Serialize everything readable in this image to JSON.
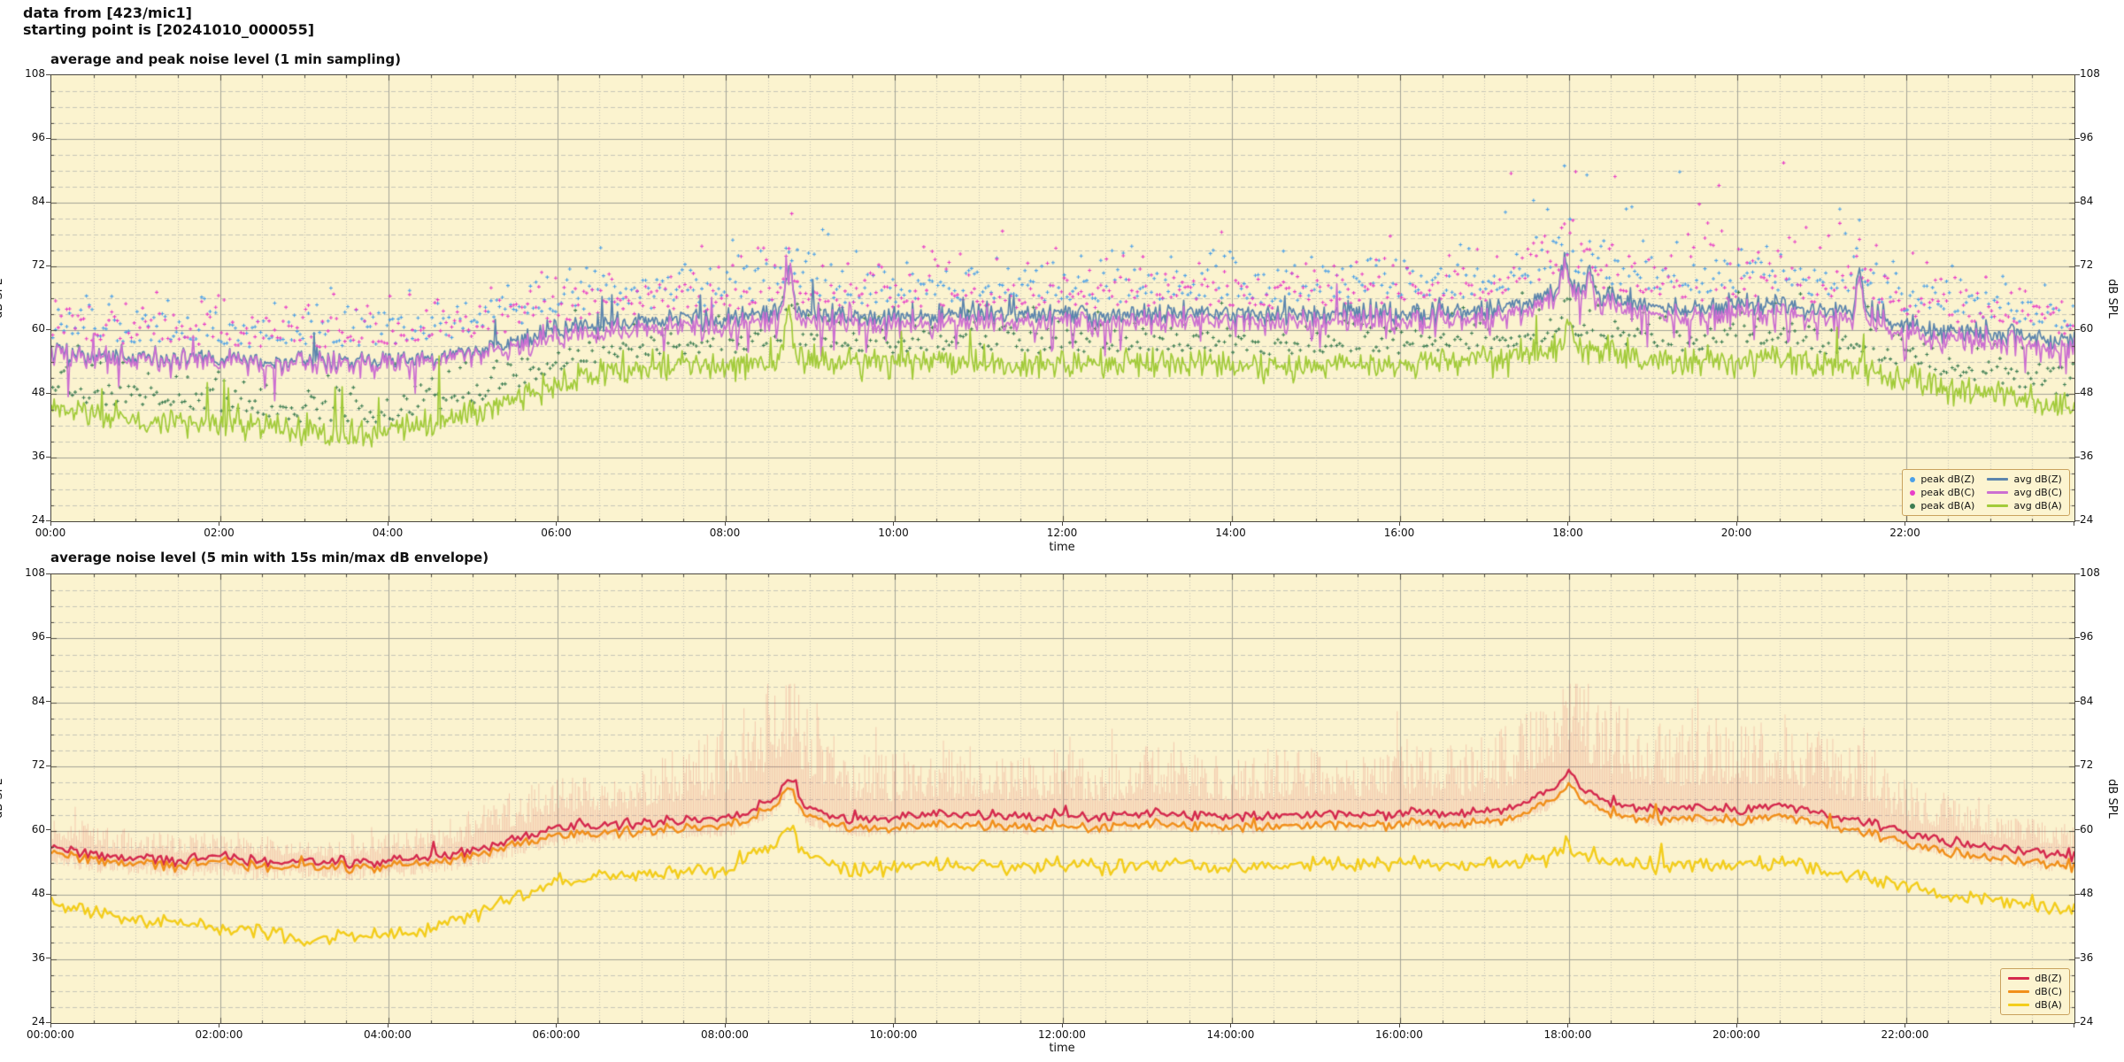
{
  "header": {
    "line1": "data from [423/mic1]",
    "line2": "starting point is [20241010_000055]"
  },
  "style": {
    "plot_bg": "#fbf3cf",
    "grid_major": "#a3a396",
    "grid_minor": "#c6c6b8",
    "frame": "#4a473f",
    "text": "#111111"
  },
  "chart_data": [
    {
      "type": "line+scatter",
      "title": "average and peak noise level (1 min sampling)",
      "xlabel": "time",
      "ylabel": "dB SPL",
      "xlim_hours": [
        0,
        24
      ],
      "ylim": [
        24,
        108
      ],
      "x_major_step_hours": 2,
      "x_minor_step_hours": 0.5,
      "y_major_step": 12,
      "y_minor_step": 3,
      "grid": true,
      "x_tick_labels": [
        "00:00",
        "02:00",
        "04:00",
        "06:00",
        "08:00",
        "10:00",
        "12:00",
        "14:00",
        "16:00",
        "18:00",
        "20:00",
        "22:00"
      ],
      "y_tick_labels": [
        "24",
        "36",
        "48",
        "60",
        "72",
        "84",
        "96",
        "108"
      ],
      "legend": {
        "position": "bottom-right",
        "entries": [
          {
            "label": "peak dB(Z)",
            "marker": "dot",
            "color": "#4ba0e8"
          },
          {
            "label": "peak dB(C)",
            "marker": "dot",
            "color": "#e83fc8"
          },
          {
            "label": "peak dB(A)",
            "marker": "dot",
            "color": "#3c7d52"
          },
          {
            "label": "avg dB(Z)",
            "marker": "line",
            "color": "#5c85ad"
          },
          {
            "label": "avg dB(C)",
            "marker": "line",
            "color": "#cc6fd1"
          },
          {
            "label": "avg dB(A)",
            "marker": "line",
            "color": "#a2cb3a"
          }
        ]
      },
      "series": [
        {
          "name": "avg dB(Z)",
          "type": "line",
          "color": "#5c85ad",
          "width": 1.7,
          "sample_step_min": 1,
          "anchor_step_hours": 0.5,
          "noise_db": 2.0,
          "noise_seed": "tZC",
          "spike": {
            "p": 0.012,
            "max": 6
          },
          "events": [
            {
              "t": 8.75,
              "a": 8,
              "w": 0.07
            },
            {
              "t": 17.95,
              "a": 6,
              "w": 0.05
            },
            {
              "t": 18.25,
              "a": 5,
              "w": 0.05
            },
            {
              "t": 21.45,
              "a": 8,
              "w": 0.04
            }
          ],
          "anchors": [
            56,
            55,
            55,
            54.5,
            55,
            54,
            54.5,
            54,
            54.5,
            55,
            56,
            58,
            60,
            61,
            61.5,
            62,
            62,
            63,
            63.5,
            62.5,
            62.5,
            63,
            63,
            62.5,
            63,
            62.5,
            63,
            63.5,
            63,
            62.5,
            63,
            63.5,
            63,
            63.5,
            63.5,
            65,
            68,
            66,
            64.5,
            64,
            64.5,
            65,
            63.5,
            64,
            61,
            60,
            59.5,
            58.5,
            57.5
          ]
        },
        {
          "name": "avg dB(C)",
          "type": "line",
          "color": "#cc6fd1",
          "width": 1.7,
          "sample_step_min": 1,
          "anchor_step_hours": 0.5,
          "noise_db": 2.3,
          "noise_seed": "tZC",
          "spike": {
            "p": 0.012,
            "max": 6
          },
          "dip": {
            "p": 0.05,
            "min": 2,
            "max": 6
          },
          "events": [
            {
              "t": 8.75,
              "a": 10,
              "w": 0.07
            },
            {
              "t": 17.95,
              "a": 6,
              "w": 0.05
            },
            {
              "t": 18.25,
              "a": 5,
              "w": 0.05
            },
            {
              "t": 21.45,
              "a": 8,
              "w": 0.04
            }
          ],
          "anchors": [
            55.5,
            54.5,
            54.5,
            54,
            54.5,
            53.5,
            54,
            53.5,
            54,
            54.5,
            55.5,
            57,
            58.5,
            59.5,
            60,
            60.5,
            60.5,
            61.5,
            62,
            61,
            61,
            61.5,
            61.5,
            61,
            61.5,
            61,
            61.5,
            62,
            61.5,
            61,
            61.5,
            62,
            61.5,
            62,
            62,
            63.5,
            67,
            64.5,
            63,
            62.5,
            63,
            63.5,
            62,
            62.5,
            59.5,
            58.5,
            58,
            57,
            56
          ]
        },
        {
          "name": "avg dB(A)",
          "type": "line",
          "color": "#a2cb3a",
          "width": 1.7,
          "sample_step_min": 1,
          "anchor_step_hours": 0.5,
          "noise_db": 2.6,
          "spike": {
            "p": 0.012,
            "max": 8
          },
          "night_spike": {
            "p": 0.025,
            "max": 17,
            "until_hour": 5.5
          },
          "events": [
            {
              "t": 8.75,
              "a": 9,
              "w": 0.06
            },
            {
              "t": 18.0,
              "a": 4,
              "w": 0.05
            }
          ],
          "anchors": [
            46,
            44,
            43.5,
            43,
            42.5,
            42,
            40.5,
            40,
            41,
            42.5,
            44,
            47,
            50,
            52,
            53,
            53.5,
            53.5,
            54.5,
            55,
            53.5,
            53.5,
            54,
            54,
            53.5,
            54,
            53.5,
            54,
            54,
            53.5,
            53,
            53.5,
            54,
            53.5,
            54,
            54,
            55,
            57,
            55.5,
            54.5,
            54,
            54,
            54.5,
            53,
            53,
            50.5,
            49,
            48,
            46.5,
            45.5
          ]
        },
        {
          "name": "peak dB(Z)",
          "type": "scatter",
          "marker": "plus",
          "color": "#4ba0e8",
          "base": "avg dB(Z)",
          "sample_step_min": 2,
          "offset": {
            "base": 2.5,
            "spread": 12,
            "tail_p": 0.06,
            "tail_max": 9,
            "evening": {
              "from": 17.2,
              "to": 21.7,
              "p": 0.1,
              "extra_min": 5,
              "extra_max": 18
            },
            "cap_db": 91.5
          }
        },
        {
          "name": "peak dB(C)",
          "type": "scatter",
          "marker": "plus",
          "color": "#e83fc8",
          "base": "avg dB(C)",
          "sample_step_min": 2,
          "offset": {
            "base": 3,
            "spread": 12,
            "tail_p": 0.06,
            "tail_max": 9,
            "evening": {
              "from": 17.2,
              "to": 21.7,
              "p": 0.1,
              "extra_min": 5,
              "extra_max": 18
            },
            "cap_db": 91.5
          }
        },
        {
          "name": "peak dB(A)",
          "type": "scatter",
          "marker": "plus",
          "color": "#3c7d52",
          "base": "avg dB(A)",
          "sample_step_min": 2,
          "offset": {
            "base": 2,
            "spread": 9,
            "tail_p": 0.05,
            "tail_max": 7,
            "evening": {
              "from": 17.2,
              "to": 21.7,
              "p": 0.05,
              "extra_min": 3,
              "extra_max": 9
            },
            "cap_db": 80
          }
        }
      ]
    },
    {
      "type": "line",
      "title": "average noise level (5 min with 15s min/max dB envelope)",
      "xlabel": "time",
      "ylabel": "dB SPL",
      "xlim_hours": [
        0,
        24
      ],
      "ylim": [
        24,
        108
      ],
      "x_major_step_hours": 2,
      "x_minor_step_hours": 0.5,
      "y_major_step": 12,
      "y_minor_step": 3,
      "grid": true,
      "x_tick_labels": [
        "00:00:00",
        "02:00:00",
        "04:00:00",
        "06:00:00",
        "08:00:00",
        "10:00:00",
        "12:00:00",
        "14:00:00",
        "16:00:00",
        "18:00:00",
        "20:00:00",
        "22:00:00"
      ],
      "y_tick_labels": [
        "24",
        "36",
        "48",
        "60",
        "72",
        "84",
        "96",
        "108"
      ],
      "legend": {
        "position": "bottom-right",
        "entries": [
          {
            "label": "dB(Z)",
            "marker": "line",
            "color": "#d5294d"
          },
          {
            "label": "dB(C)",
            "marker": "line",
            "color": "#f18f1a"
          },
          {
            "label": "dB(A)",
            "marker": "line",
            "color": "#f3cd1b"
          }
        ]
      },
      "series": [
        {
          "name": "15s min/max envelope",
          "type": "envelope",
          "color": "rgba(229,113,102,0.30)",
          "base": "dB(Z)",
          "amp_step_hours": 0.5,
          "cap_db": 87.5,
          "min_drop_db": [
            1.2,
            3.4
          ],
          "amp_anchors": [
            6,
            6,
            5,
            5,
            5,
            5,
            4,
            4,
            5,
            6,
            8,
            9,
            10,
            10,
            12,
            14,
            18,
            22,
            20,
            14,
            12,
            12,
            13,
            12,
            13,
            12,
            13,
            14,
            12,
            13,
            12,
            13,
            14,
            13,
            13,
            18,
            22,
            20,
            16,
            16,
            18,
            16,
            15,
            14,
            10,
            9,
            8,
            7,
            6
          ]
        },
        {
          "name": "dB(Z)",
          "type": "line",
          "color": "#d5294d",
          "width": 2.4,
          "sample_step_min": 2,
          "anchor_step_hours": 0.5,
          "noise_db": 1.0,
          "noise_seed": "bZC",
          "spike": {
            "p": 0.008,
            "max": 3
          },
          "events": [
            {
              "t": 8.75,
              "a": 5,
              "w": 0.12
            },
            {
              "t": 18.0,
              "a": 2.5,
              "w": 0.1
            }
          ],
          "anchors": [
            57,
            55.5,
            55,
            54.5,
            55,
            54,
            54.5,
            54,
            54.5,
            55,
            56.5,
            58.5,
            60.5,
            61,
            61.5,
            62,
            62,
            65.5,
            64,
            62,
            62.5,
            63,
            63,
            62.5,
            63,
            62.5,
            63.5,
            63,
            62.5,
            63,
            63.5,
            63,
            63.5,
            63,
            63.5,
            65,
            69,
            65.5,
            64,
            64.5,
            64,
            65,
            63.5,
            62,
            59.5,
            58,
            57,
            56,
            55.5
          ]
        },
        {
          "name": "dB(C)",
          "type": "line",
          "color": "#f18f1a",
          "width": 2.4,
          "sample_step_min": 2,
          "anchor_step_hours": 0.5,
          "noise_db": 1.0,
          "noise_seed": "bZC",
          "spike": {
            "p": 0.008,
            "max": 3
          },
          "events": [
            {
              "t": 8.75,
              "a": 5,
              "w": 0.12
            },
            {
              "t": 18.0,
              "a": 2,
              "w": 0.1
            }
          ],
          "anchors": [
            56,
            54.5,
            54,
            53.5,
            54,
            53,
            53.5,
            53,
            53.5,
            54,
            55.5,
            57.5,
            59,
            59.5,
            60,
            60.5,
            60.5,
            64,
            62.5,
            60.5,
            60.5,
            61,
            61,
            60.5,
            61,
            60.5,
            61.5,
            61,
            60.5,
            61,
            61.5,
            61,
            61.5,
            61,
            61.5,
            63,
            67,
            63.5,
            62,
            62.5,
            62,
            63,
            61.5,
            60,
            57.5,
            56,
            55,
            54,
            53.5
          ]
        },
        {
          "name": "dB(A)",
          "type": "line",
          "color": "#f3cd1b",
          "width": 2.4,
          "sample_step_min": 2,
          "anchor_step_hours": 0.5,
          "noise_db": 1.4,
          "spike": {
            "p": 0.01,
            "max": 4
          },
          "events": [
            {
              "t": 8.75,
              "a": 5,
              "w": 0.1
            },
            {
              "t": 18.0,
              "a": 1.5,
              "w": 0.1
            }
          ],
          "anchors": [
            46.5,
            44.5,
            43.5,
            43,
            42,
            41,
            39.5,
            40,
            40.5,
            42,
            44.5,
            47.5,
            50.5,
            51.5,
            52,
            52.5,
            52.5,
            57,
            55,
            52.5,
            53,
            53.5,
            53.5,
            53,
            53.5,
            53,
            54,
            53.5,
            53,
            53.5,
            54,
            53.5,
            54,
            53.5,
            54,
            54.5,
            56,
            54.5,
            53.5,
            54,
            53.5,
            54.5,
            53,
            51.5,
            49.5,
            48,
            47,
            46,
            45
          ]
        }
      ]
    }
  ]
}
